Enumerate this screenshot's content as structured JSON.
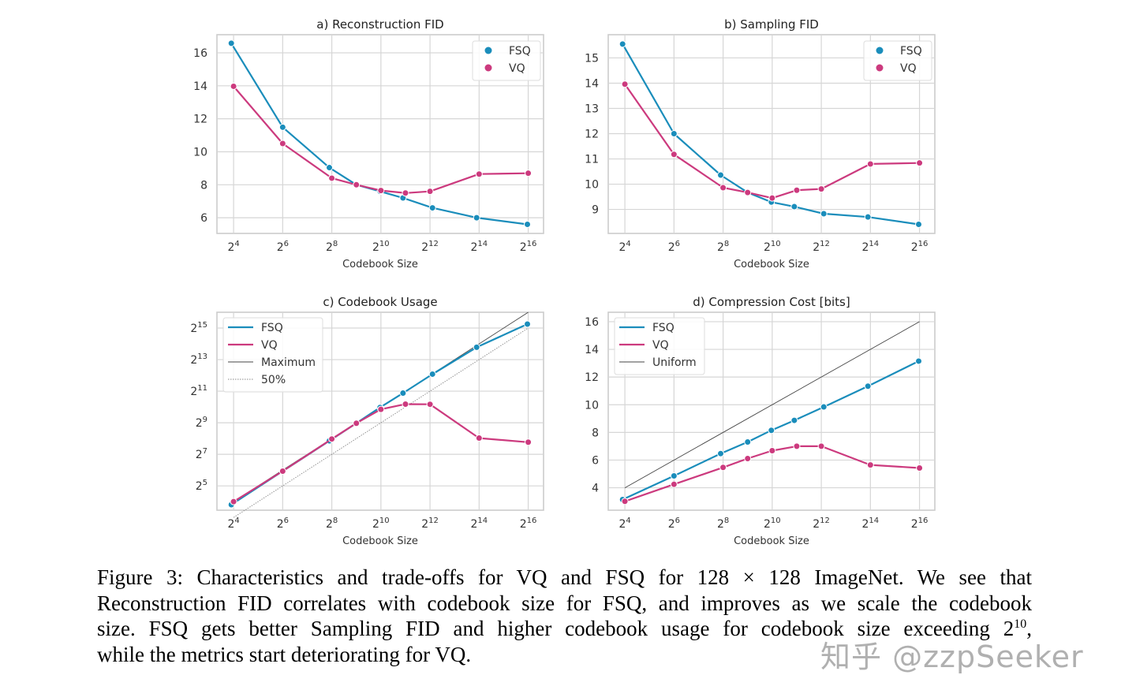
{
  "colors": {
    "fsq": "#1a8dbb",
    "vq": "#cc3a7e",
    "maximum": "#444444",
    "fifty": "#888888",
    "grid": "#d6d6d6",
    "frame": "#cccccc"
  },
  "chart_data": [
    {
      "type": "line",
      "title": "a) Reconstruction FID",
      "xlabel": "Codebook Size",
      "xscale": "log2",
      "xlim": [
        10,
        101000
      ],
      "xticks": [
        {
          "base": "2",
          "exp": "4"
        },
        {
          "base": "2",
          "exp": "6"
        },
        {
          "base": "2",
          "exp": "8"
        },
        {
          "base": "2",
          "exp": "10"
        },
        {
          "base": "2",
          "exp": "12"
        },
        {
          "base": "2",
          "exp": "14"
        },
        {
          "base": "2",
          "exp": "16"
        }
      ],
      "ylim": [
        5.05,
        17.1
      ],
      "yticks": [
        {
          "label": "6"
        },
        {
          "label": "8"
        },
        {
          "label": "10"
        },
        {
          "label": "12"
        },
        {
          "label": "14"
        },
        {
          "label": "16"
        }
      ],
      "grid": true,
      "legend": {
        "placement": "top-right",
        "style": "marker"
      },
      "series": [
        {
          "name": "FSQ",
          "color_key": "fsq",
          "markers": true,
          "x": [
            15,
            64,
            239,
            512,
            1000,
            1911,
            4390,
            15280,
            64000
          ],
          "y": [
            16.58,
            11.49,
            9.04,
            8.0,
            7.6,
            7.2,
            6.6,
            6.0,
            5.6
          ]
        },
        {
          "name": "VQ",
          "color_key": "vq",
          "markers": true,
          "x": [
            16,
            64,
            256,
            512,
            1024,
            2048,
            4096,
            16384,
            65536
          ],
          "y": [
            13.97,
            10.5,
            8.4,
            8.0,
            7.65,
            7.5,
            7.6,
            8.65,
            8.7
          ]
        }
      ]
    },
    {
      "type": "line",
      "title": "b) Sampling FID",
      "xlabel": "Codebook Size",
      "xscale": "log2",
      "xlim": [
        10,
        101000
      ],
      "xticks": [
        {
          "base": "2",
          "exp": "4"
        },
        {
          "base": "2",
          "exp": "6"
        },
        {
          "base": "2",
          "exp": "8"
        },
        {
          "base": "2",
          "exp": "10"
        },
        {
          "base": "2",
          "exp": "12"
        },
        {
          "base": "2",
          "exp": "14"
        },
        {
          "base": "2",
          "exp": "16"
        }
      ],
      "ylim": [
        8.05,
        15.92
      ],
      "yticks": [
        {
          "label": "9"
        },
        {
          "label": "10"
        },
        {
          "label": "11"
        },
        {
          "label": "12"
        },
        {
          "label": "13"
        },
        {
          "label": "14"
        },
        {
          "label": "15"
        }
      ],
      "grid": true,
      "legend": {
        "placement": "top-right",
        "style": "marker"
      },
      "series": [
        {
          "name": "FSQ",
          "color_key": "fsq",
          "markers": true,
          "x": [
            15,
            64,
            239,
            512,
            1000,
            1911,
            4390,
            15280,
            64000
          ],
          "y": [
            15.55,
            12.0,
            10.36,
            9.67,
            9.29,
            9.11,
            8.83,
            8.7,
            8.41
          ]
        },
        {
          "name": "VQ",
          "color_key": "vq",
          "markers": true,
          "x": [
            16,
            64,
            256,
            512,
            1024,
            2048,
            4096,
            16384,
            65536
          ],
          "y": [
            13.96,
            11.18,
            9.86,
            9.67,
            9.45,
            9.76,
            9.81,
            10.8,
            10.84
          ]
        }
      ]
    },
    {
      "type": "line",
      "title": "c) Codebook Usage",
      "xlabel": "Codebook Size",
      "xscale": "log2",
      "yscale": "log2",
      "xlim": [
        10,
        101000
      ],
      "xticks": [
        {
          "base": "2",
          "exp": "4"
        },
        {
          "base": "2",
          "exp": "6"
        },
        {
          "base": "2",
          "exp": "8"
        },
        {
          "base": "2",
          "exp": "10"
        },
        {
          "base": "2",
          "exp": "12"
        },
        {
          "base": "2",
          "exp": "14"
        },
        {
          "base": "2",
          "exp": "16"
        }
      ],
      "ylim": [
        11,
        65536
      ],
      "yticks": [
        {
          "base": "2",
          "exp": "5"
        },
        {
          "base": "2",
          "exp": "7"
        },
        {
          "base": "2",
          "exp": "9"
        },
        {
          "base": "2",
          "exp": "11"
        },
        {
          "base": "2",
          "exp": "13"
        },
        {
          "base": "2",
          "exp": "15"
        }
      ],
      "grid": true,
      "legend": {
        "placement": "top-left",
        "style": "line"
      },
      "series": [
        {
          "name": "FSQ",
          "color_key": "fsq",
          "markers": true,
          "x": [
            15,
            64,
            239,
            512,
            1000,
            1911,
            4390,
            15280,
            64000
          ],
          "y": [
            14,
            61,
            231,
            501,
            1003,
            1885,
            4329,
            14080,
            38968
          ]
        },
        {
          "name": "VQ",
          "color_key": "vq",
          "markers": true,
          "x": [
            16,
            64,
            256,
            512,
            1024,
            2048,
            4096,
            16384,
            65536
          ],
          "y": [
            16,
            61,
            251,
            501,
            923,
            1160,
            1152,
            261,
            218
          ]
        },
        {
          "name": "Maximum",
          "color_key": "maximum",
          "markers": false,
          "thin": true,
          "x": [
            16,
            65536
          ],
          "y": [
            16,
            65536
          ]
        },
        {
          "name": "50%",
          "color_key": "fifty",
          "markers": false,
          "thin": true,
          "dotted": true,
          "x": [
            16,
            65536
          ],
          "y": [
            8,
            32768
          ]
        }
      ]
    },
    {
      "type": "line",
      "title": "d) Compression Cost [bits]",
      "xlabel": "Codebook Size",
      "xscale": "log2",
      "xlim": [
        10,
        101000
      ],
      "xticks": [
        {
          "base": "2",
          "exp": "4"
        },
        {
          "base": "2",
          "exp": "6"
        },
        {
          "base": "2",
          "exp": "8"
        },
        {
          "base": "2",
          "exp": "10"
        },
        {
          "base": "2",
          "exp": "12"
        },
        {
          "base": "2",
          "exp": "14"
        },
        {
          "base": "2",
          "exp": "16"
        }
      ],
      "ylim": [
        2.38,
        16.68
      ],
      "yticks": [
        {
          "label": "4"
        },
        {
          "label": "6"
        },
        {
          "label": "8"
        },
        {
          "label": "10"
        },
        {
          "label": "12"
        },
        {
          "label": "14"
        },
        {
          "label": "16"
        }
      ],
      "grid": true,
      "legend": {
        "placement": "top-left",
        "style": "line"
      },
      "series": [
        {
          "name": "FSQ",
          "color_key": "fsq",
          "markers": true,
          "x": [
            15,
            64,
            239,
            512,
            1000,
            1911,
            4390,
            15280,
            64000
          ],
          "y": [
            3.15,
            4.86,
            6.47,
            7.31,
            8.15,
            8.87,
            9.84,
            11.34,
            13.15
          ]
        },
        {
          "name": "VQ",
          "color_key": "vq",
          "markers": true,
          "x": [
            16,
            64,
            256,
            512,
            1024,
            2048,
            4096,
            16384,
            65536
          ],
          "y": [
            3.02,
            4.25,
            5.47,
            6.11,
            6.68,
            7.0,
            7.0,
            5.65,
            5.43
          ]
        },
        {
          "name": "Uniform",
          "color_key": "maximum",
          "markers": false,
          "thin": true,
          "x": [
            16,
            65536
          ],
          "y": [
            4,
            16
          ]
        }
      ]
    }
  ],
  "caption": {
    "line1": "Figure 3:   Characteristics and trade-offs for VQ and FSQ for 128 × 128 ImageNet.  We see that",
    "line2": "Reconstruction FID correlates with codebook size for FSQ, and improves as we scale the codebook",
    "line3_before": "size.  FSQ gets better Sampling FID and higher codebook usage for codebook size exceeding 2",
    "line3_exp": "10",
    "line3_after": ",",
    "line4": "while the metrics start deteriorating for VQ."
  },
  "watermark": "知乎 @zzpSeeker"
}
